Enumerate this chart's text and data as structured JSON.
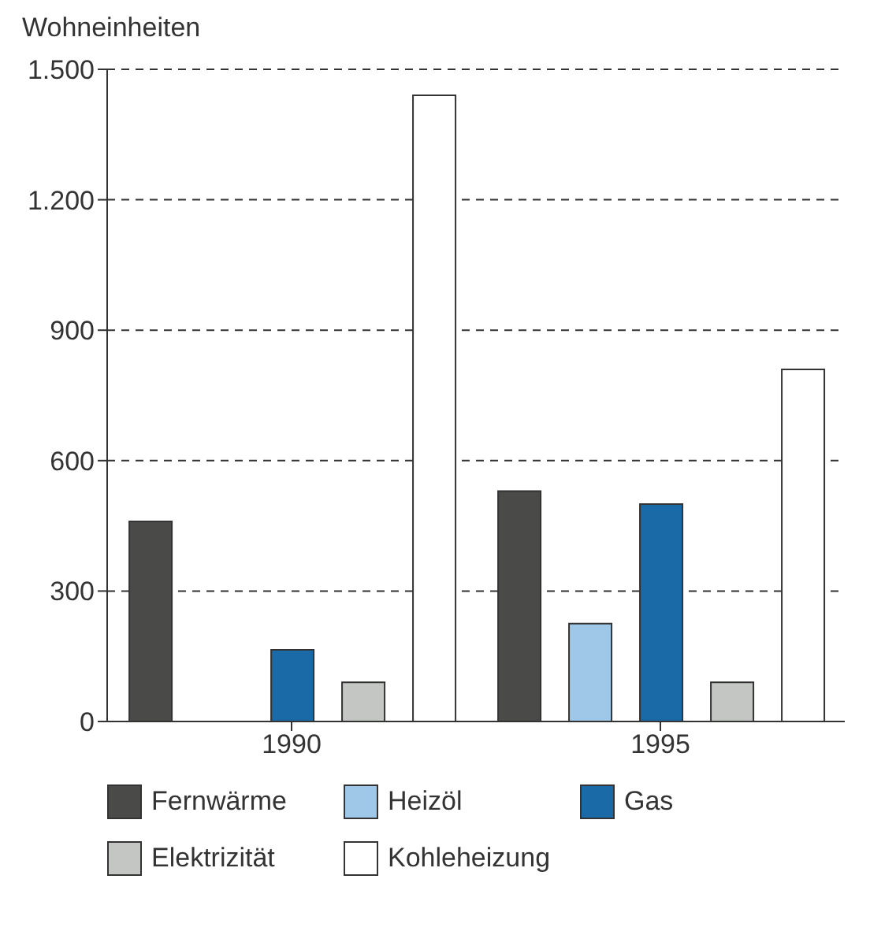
{
  "chart_data": {
    "type": "bar",
    "ylabel": "Wohneinheiten",
    "categories": [
      "1990",
      "1995"
    ],
    "series": [
      {
        "name": "Fernwärme",
        "color": "#4a4a48",
        "values": [
          460,
          530
        ]
      },
      {
        "name": "Heizöl",
        "color": "#9fc8e8",
        "values": [
          null,
          225
        ]
      },
      {
        "name": "Gas",
        "color": "#1a6aa8",
        "values": [
          165,
          500
        ]
      },
      {
        "name": "Elektrizität",
        "color": "#c4c6c4",
        "values": [
          90,
          90
        ]
      },
      {
        "name": "Kohleheizung",
        "color": "#ffffff",
        "values": [
          1440,
          810
        ]
      }
    ],
    "ylim": [
      0,
      1500
    ],
    "yticks": [
      0,
      300,
      600,
      900,
      {
        "value": 1200,
        "label": "1.200"
      },
      {
        "value": 1500,
        "label": "1.500"
      }
    ],
    "grid": "y",
    "legend": "bottom"
  }
}
